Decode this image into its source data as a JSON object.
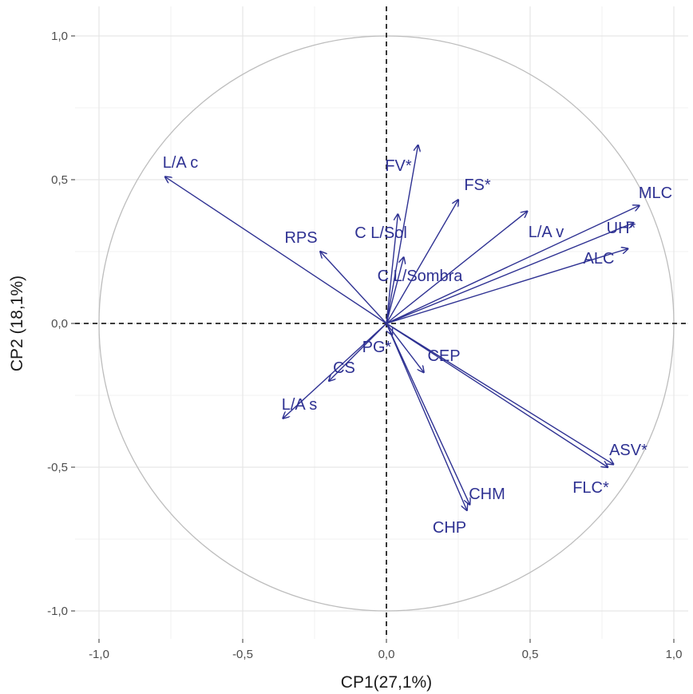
{
  "chart_data": {
    "type": "scatter",
    "subtype": "pca-correlation-circle",
    "title": "",
    "xlabel": "CP1(27,1%)",
    "ylabel": "CP2 (18,1%)",
    "xlim": [
      -1.0,
      1.0
    ],
    "ylim": [
      -1.0,
      1.0
    ],
    "xticks": [
      "-1,0",
      "-0,5",
      "0,0",
      "0,5",
      "1,0"
    ],
    "yticks": [
      "-1,0",
      "-0,5",
      "0,0",
      "0,5",
      "1,0"
    ],
    "grid": true,
    "unit_circle": true,
    "reference_lines": "dashed at x=0 and y=0",
    "colors": {
      "vector": "#2e3192",
      "grid_major": "#e6e6e6",
      "grid_minor": "#f2f2f2",
      "circle": "#bdbdbd",
      "reference": "#222222"
    },
    "series": [
      {
        "label": "L/A c",
        "x": -0.77,
        "y": 0.51
      },
      {
        "label": "FV*",
        "x": 0.11,
        "y": 0.62
      },
      {
        "label": "FS*",
        "x": 0.25,
        "y": 0.43
      },
      {
        "label": "MLC",
        "x": 0.88,
        "y": 0.41
      },
      {
        "label": "UH*",
        "x": 0.86,
        "y": 0.35
      },
      {
        "label": "ALC",
        "x": 0.84,
        "y": 0.26
      },
      {
        "label": "L/A v",
        "x": 0.49,
        "y": 0.39
      },
      {
        "label": "C L/Sol",
        "x": 0.04,
        "y": 0.38
      },
      {
        "label": "RPS",
        "x": -0.23,
        "y": 0.25
      },
      {
        "label": "C L/Sombra",
        "x": 0.06,
        "y": 0.23
      },
      {
        "label": "PG*",
        "x": 0.02,
        "y": -0.04
      },
      {
        "label": "CEP",
        "x": 0.13,
        "y": -0.17
      },
      {
        "label": "CS",
        "x": -0.2,
        "y": -0.2
      },
      {
        "label": "L/A s",
        "x": -0.36,
        "y": -0.33
      },
      {
        "label": "ASV*",
        "x": 0.79,
        "y": -0.49
      },
      {
        "label": "FLC*",
        "x": 0.77,
        "y": -0.5
      },
      {
        "label": "CHM",
        "x": 0.29,
        "y": -0.63
      },
      {
        "label": "CHP",
        "x": 0.28,
        "y": -0.65
      }
    ]
  }
}
